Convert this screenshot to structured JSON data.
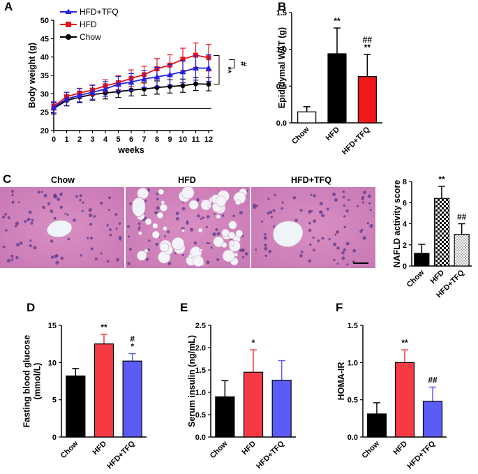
{
  "figure": {
    "panel_labels": [
      "A",
      "B",
      "C",
      "D",
      "E",
      "F"
    ],
    "colors": {
      "chow": "#000000",
      "hfd": "#e8141c",
      "hfd_tfq": "#2222dd",
      "red_bar": "#f53a44",
      "blue_bar": "#5b5bf5"
    }
  },
  "chart_data": [
    {
      "panel": "A",
      "type": "line",
      "xlabel": "weeks",
      "ylabel": "Body weight (g)",
      "x": [
        0,
        1,
        2,
        3,
        4,
        5,
        6,
        7,
        8,
        9,
        10,
        11,
        12
      ],
      "ylim": [
        20,
        50
      ],
      "yticks": [
        "20",
        "25",
        "30",
        "35",
        "40",
        "45",
        "50"
      ],
      "series": [
        {
          "name": "HFD+TFQ",
          "color": "#2222dd",
          "marker": "triangle",
          "values": [
            26.3,
            28.6,
            29.6,
            30.4,
            31.3,
            32.6,
            33.2,
            34.0,
            34.6,
            35.2,
            36.0,
            37.0,
            37.0
          ],
          "err": [
            1.5,
            1.8,
            1.8,
            1.9,
            2.0,
            2.1,
            2.3,
            2.3,
            2.6,
            2.8,
            3.0,
            3.3,
            3.6
          ]
        },
        {
          "name": "HFD",
          "color": "#e8141c",
          "marker": "square",
          "values": [
            26.6,
            29.2,
            30.2,
            31.0,
            32.2,
            33.0,
            34.2,
            35.2,
            36.8,
            37.8,
            39.4,
            40.5,
            39.8
          ],
          "err": [
            1.0,
            1.2,
            1.3,
            1.4,
            1.6,
            1.9,
            2.3,
            2.3,
            2.8,
            2.8,
            3.0,
            3.3,
            3.6
          ]
        },
        {
          "name": "Chow",
          "color": "#000000",
          "marker": "circle",
          "values": [
            26.0,
            28.2,
            29.1,
            29.8,
            30.2,
            30.6,
            31.0,
            31.3,
            31.7,
            32.0,
            32.2,
            32.7,
            32.6
          ],
          "err": [
            1.5,
            1.5,
            1.5,
            1.6,
            1.6,
            1.6,
            1.6,
            1.7,
            1.8,
            1.8,
            1.8,
            1.8,
            1.8
          ]
        }
      ],
      "annotations": [
        "**",
        "#"
      ]
    },
    {
      "panel": "B",
      "type": "bar",
      "ylabel": "Epididymal WAT (g)",
      "categories": [
        "Chow",
        "HFD",
        "HFD+TFQ"
      ],
      "values": [
        0.15,
        0.94,
        0.63
      ],
      "err": [
        0.07,
        0.35,
        0.3
      ],
      "ylim": [
        0,
        1.5
      ],
      "yticks": [
        "0.0",
        "0.5",
        "1.0",
        "1.5"
      ],
      "fills": [
        "#ffffff",
        "#000000",
        "#f01a1a"
      ],
      "sig": [
        "",
        "**",
        "##\n**"
      ]
    },
    {
      "panel": "C",
      "type": "bar",
      "ylabel": "NAFLD activity score",
      "categories": [
        "Chow",
        "HFD",
        "HFD+TFQ"
      ],
      "values": [
        1.2,
        6.4,
        3.0
      ],
      "err": [
        0.85,
        1.15,
        1.0
      ],
      "ylim": [
        0,
        8
      ],
      "yticks": [
        "0",
        "2",
        "4",
        "6",
        "8"
      ],
      "fills": [
        "#000000",
        "checker",
        "dots"
      ],
      "sig": [
        "",
        "**",
        "##"
      ]
    },
    {
      "panel": "D",
      "type": "bar",
      "ylabel": "Fasting blood glucose\n(mmol/L)",
      "categories": [
        "Chow",
        "HFD",
        "HFD+TFQ"
      ],
      "values": [
        8.2,
        12.5,
        10.2
      ],
      "err": [
        1.0,
        1.3,
        1.0
      ],
      "ylim": [
        0,
        15
      ],
      "yticks": [
        "0",
        "5",
        "10",
        "15"
      ],
      "fills": [
        "#000000",
        "#f53a44",
        "#5b5bf5"
      ],
      "sig": [
        "",
        "**",
        "#\n*"
      ]
    },
    {
      "panel": "E",
      "type": "bar",
      "ylabel": "Serum insulin (ng/mL)",
      "categories": [
        "Chow",
        "HFD",
        "HFD+TFQ"
      ],
      "values": [
        0.9,
        1.45,
        1.27
      ],
      "err": [
        0.36,
        0.5,
        0.44
      ],
      "ylim": [
        0,
        2.5
      ],
      "yticks": [
        "0.0",
        "0.5",
        "1.0",
        "1.5",
        "2.0",
        "2.5"
      ],
      "fills": [
        "#000000",
        "#f53a44",
        "#5b5bf5"
      ],
      "sig": [
        "",
        "*",
        ""
      ]
    },
    {
      "panel": "F",
      "type": "bar",
      "ylabel": "HOMA-IR",
      "categories": [
        "Chow",
        "HFD",
        "HFD+TFQ"
      ],
      "values": [
        0.31,
        1.0,
        0.48
      ],
      "err": [
        0.15,
        0.17,
        0.19
      ],
      "ylim": [
        0,
        1.5
      ],
      "yticks": [
        "0.0",
        "0.5",
        "1.0",
        "1.5"
      ],
      "fills": [
        "#000000",
        "#f53a44",
        "#5b5bf5"
      ],
      "sig": [
        "",
        "**",
        "##"
      ]
    }
  ],
  "histology": {
    "titles": [
      "Chow",
      "HFD",
      "HFD+TFQ"
    ]
  }
}
